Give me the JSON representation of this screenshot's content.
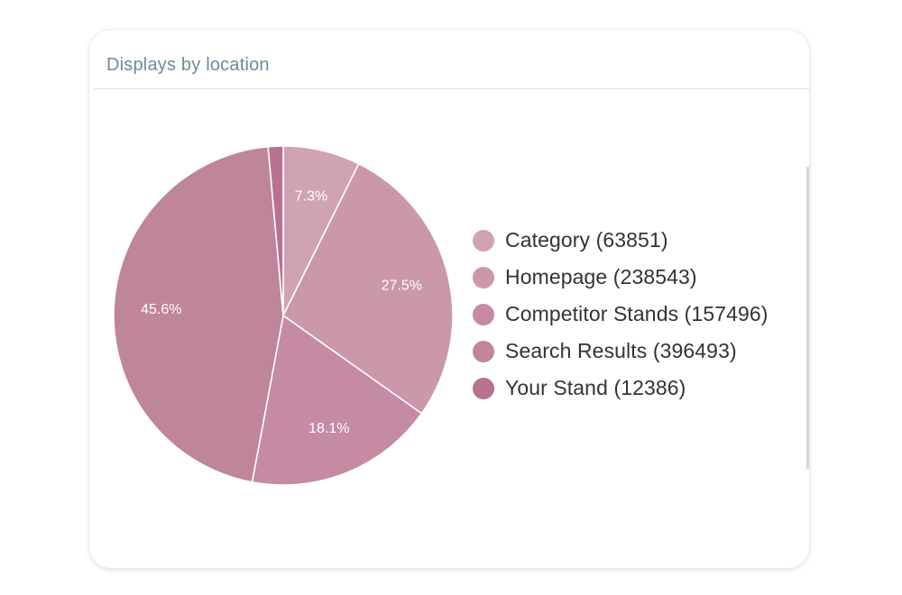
{
  "card": {
    "title": "Displays by location"
  },
  "chart_data": {
    "type": "pie",
    "start_angle_deg": 0,
    "direction": "clockwise",
    "slices": [
      {
        "label": "Category (63851)",
        "value": 63851,
        "percent_label": "7.3%",
        "color": "#d0a3b4"
      },
      {
        "label": "Homepage (238543)",
        "value": 238543,
        "percent_label": "27.5%",
        "color": "#ca97ab"
      },
      {
        "label": "Competitor Stands (157496)",
        "value": 157496,
        "percent_label": "18.1%",
        "color": "#c48ba2"
      },
      {
        "label": "Search Results (396493)",
        "value": 396493,
        "percent_label": "45.6%",
        "color": "#be859b"
      },
      {
        "label": "Your Stand (12386)",
        "value": 12386,
        "percent_label": "",
        "color": "#b8728f"
      }
    ],
    "legend_position": "right",
    "label_color": "#ffffff",
    "separator_color": "#ffffff"
  }
}
